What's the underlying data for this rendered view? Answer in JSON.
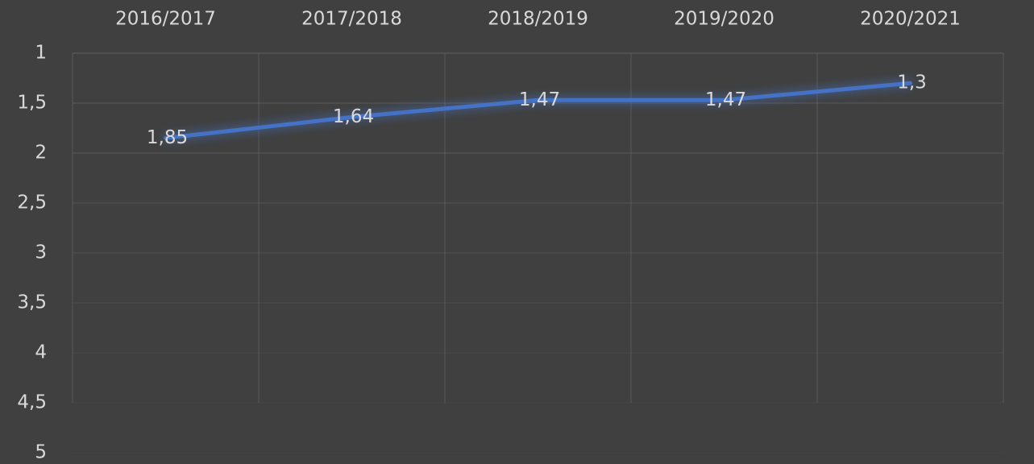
{
  "chart_data": {
    "type": "line",
    "categories": [
      "2016/2017",
      "2017/2018",
      "2018/2019",
      "2019/2020",
      "2020/2021"
    ],
    "series": [
      {
        "color": "#4472c4",
        "values": [
          1.85,
          1.64,
          1.47,
          1.47,
          1.3
        ],
        "value_labels": [
          "1,85",
          "1,64",
          "1,47",
          "1,47",
          "1,3"
        ]
      }
    ],
    "ylim": [
      1,
      5
    ],
    "y_inverted": true,
    "yticks": [
      1,
      {
        "value": 1.5,
        "label": "1,5"
      },
      2,
      {
        "value": 2.5,
        "label": "2,5"
      },
      3,
      {
        "value": 3.5,
        "label": "3,5"
      },
      4,
      {
        "value": 4.5,
        "label": "4,5"
      },
      5
    ],
    "grid": true,
    "category_axis_position": "top"
  }
}
